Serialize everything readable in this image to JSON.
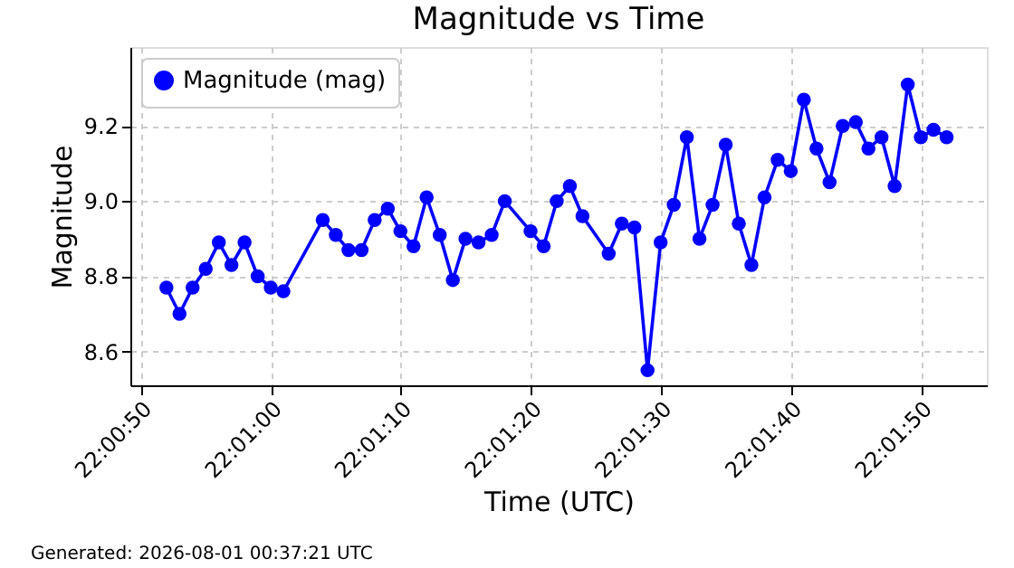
{
  "chart_data": {
    "type": "line",
    "title": "Magnitude vs Time",
    "xlabel": "Time (UTC)",
    "ylabel": "Magnitude",
    "x": [
      22.01444,
      22.01472,
      22.015,
      22.01528,
      22.01556,
      22.01583,
      22.01611,
      22.01639,
      22.01667,
      22.01694,
      22.01778,
      22.01806,
      22.01833,
      22.01861,
      22.01889,
      22.01917,
      22.01944,
      22.01972,
      22.02,
      22.02028,
      22.02056,
      22.02083,
      22.02111,
      22.02139,
      22.02167,
      22.02222,
      22.0225,
      22.02278,
      22.02306,
      22.02333,
      22.02389,
      22.02417,
      22.02444,
      22.02472,
      22.025,
      22.02528,
      22.02556,
      22.02583,
      22.02611,
      22.02639,
      22.02667,
      22.02694,
      22.02722,
      22.0275,
      22.02778,
      22.02806,
      22.02833,
      22.02861,
      22.02889,
      22.02917,
      22.02944,
      22.02972,
      22.03,
      22.03028,
      22.03056,
      22.03083,
      22.03111
    ],
    "series": [
      {
        "name": "Magnitude (mag)",
        "color": "#0000ff",
        "values": [
          8.77,
          8.7,
          8.77,
          8.82,
          8.89,
          8.83,
          8.89,
          8.8,
          8.77,
          8.76,
          8.95,
          8.91,
          8.87,
          8.87,
          8.95,
          8.98,
          8.92,
          8.88,
          9.01,
          8.91,
          8.79,
          8.9,
          8.89,
          8.91,
          9.0,
          8.92,
          8.88,
          9.0,
          9.04,
          8.96,
          8.86,
          8.94,
          8.93,
          8.55,
          8.89,
          8.99,
          9.17,
          8.9,
          8.99,
          9.15,
          8.94,
          8.83,
          9.01,
          9.11,
          9.08,
          9.27,
          9.14,
          9.05,
          9.2,
          9.21,
          9.14,
          9.17,
          9.04,
          9.31,
          9.17,
          9.19,
          9.17
        ]
      }
    ],
    "xlim": [
      22.01367,
      22.03197
    ],
    "xticks": [
      {
        "value": 22.01389,
        "label": "22:00:50"
      },
      {
        "value": 22.01667,
        "label": "22:01:00"
      },
      {
        "value": 22.01944,
        "label": "22:01:10"
      },
      {
        "value": 22.02222,
        "label": "22:01:20"
      },
      {
        "value": 22.025,
        "label": "22:01:30"
      },
      {
        "value": 22.02778,
        "label": "22:01:40"
      },
      {
        "value": 22.03056,
        "label": "22:01:50"
      }
    ],
    "ylim": [
      8.51,
      9.41
    ],
    "yticks": [
      {
        "value": 8.6,
        "label": "8.6"
      },
      {
        "value": 8.8,
        "label": "8.8"
      },
      {
        "value": 9,
        "label": "9.0"
      },
      {
        "value": 9.2,
        "label": "9.2"
      }
    ],
    "grid": true,
    "legend": "top left",
    "marker": "circle",
    "line_style": "solid",
    "annotations": [
      "Generated: 2026-08-01 00:37:21 UTC"
    ]
  }
}
